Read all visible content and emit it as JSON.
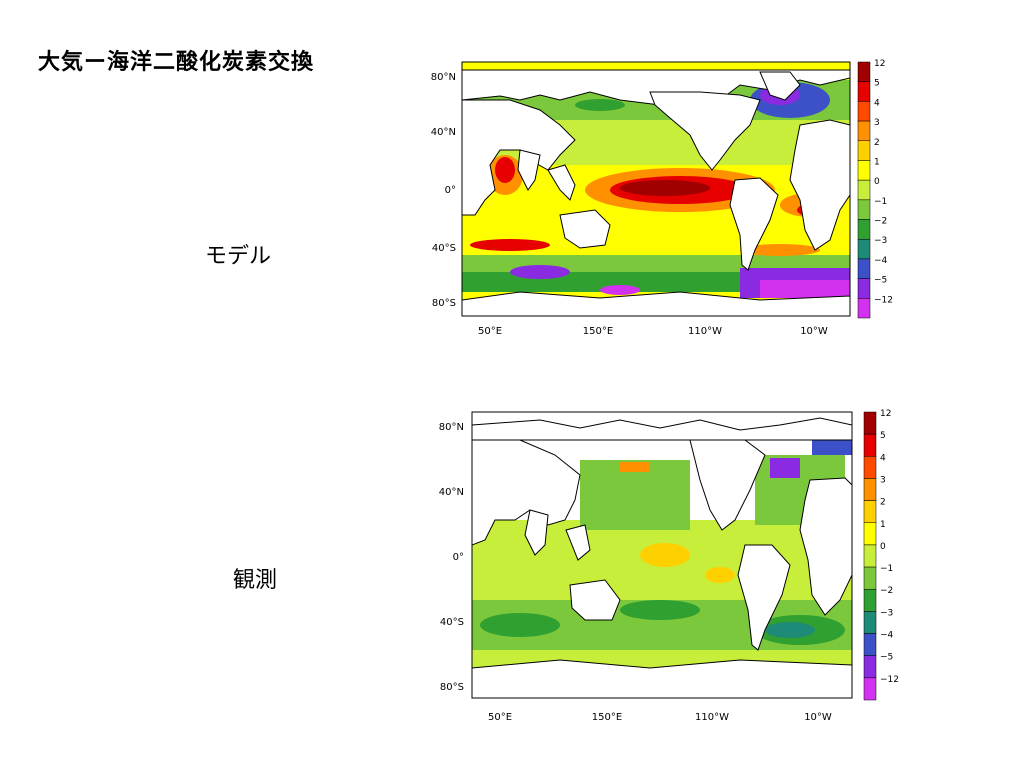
{
  "title": "大気ー海洋二酸化炭素交換",
  "panels": [
    {
      "label": "モデル"
    },
    {
      "label": "観測"
    }
  ],
  "axes": {
    "lat_ticks": [
      "80°N",
      "40°N",
      "0°",
      "40°S",
      "80°S"
    ],
    "lon_ticks": [
      "50°E",
      "150°E",
      "110°W",
      "10°W"
    ]
  },
  "colorbar": {
    "labels": [
      "12",
      "5",
      "4",
      "3",
      "2",
      "1",
      "0",
      "−1",
      "−2",
      "−3",
      "−4",
      "−5",
      "−12"
    ],
    "colors": [
      "#a00000",
      "#e60000",
      "#ff4a00",
      "#ff9000",
      "#ffd000",
      "#ffff00",
      "#c8ee3c",
      "#7cc83c",
      "#30a030",
      "#1e8a78",
      "#3c50c8",
      "#8a2be2",
      "#d232f0"
    ]
  }
}
